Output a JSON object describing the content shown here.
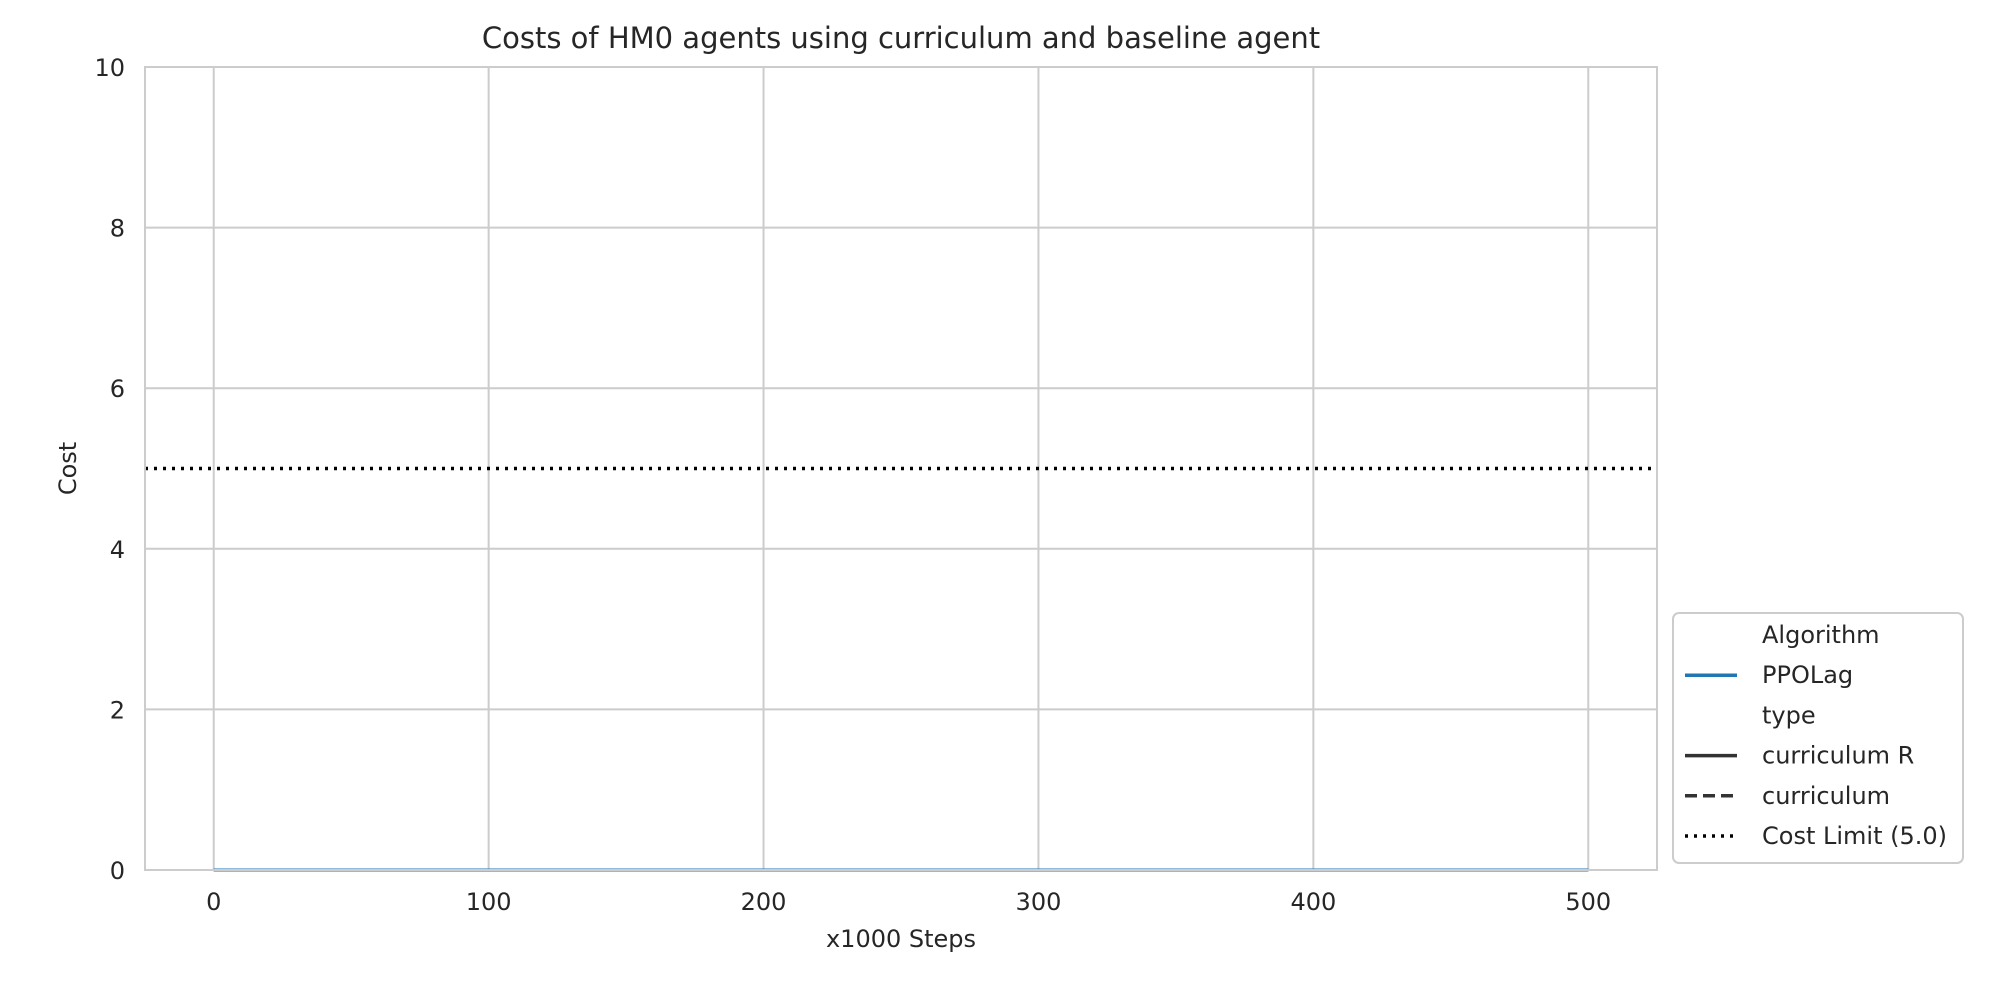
{
  "chart_data": {
    "type": "line",
    "title": "Costs of HM0 agents using curriculum and baseline agent",
    "xlabel": "x1000 Steps",
    "ylabel": "Cost",
    "xlim": [
      -25,
      525
    ],
    "ylim": [
      0,
      10
    ],
    "x_ticks": [
      0,
      100,
      200,
      300,
      400,
      500
    ],
    "y_ticks": [
      0,
      2,
      4,
      6,
      8,
      10
    ],
    "grid": true,
    "colors": {
      "ppolag": "#1f77b4",
      "dark": "#333333",
      "grid": "#cccccc",
      "cost_limit": "#000000"
    },
    "series": [
      {
        "name": "PPOLag",
        "type": "curriculum R",
        "x": [
          0,
          50,
          100,
          150,
          200,
          250,
          300,
          350,
          400,
          450,
          500
        ],
        "y": [
          0,
          0,
          0,
          0,
          0,
          0,
          0,
          0,
          0,
          0,
          0
        ]
      },
      {
        "name": "PPOLag",
        "type": "curriculum",
        "x": [
          0,
          50,
          100,
          150,
          200,
          250,
          300,
          350,
          400,
          450,
          500
        ],
        "y": [
          0,
          0,
          0,
          0,
          0,
          0,
          0,
          0,
          0,
          0,
          0
        ]
      }
    ],
    "cost_limit": {
      "label": "Cost Limit (5.0)",
      "value": 5.0
    },
    "legend": {
      "position": "lower-right-outside",
      "items": [
        {
          "label": "Algorithm",
          "style": "header",
          "color": "none"
        },
        {
          "label": "PPOLag",
          "style": "solid",
          "color": "#1f77b4"
        },
        {
          "label": "type",
          "style": "header",
          "color": "none"
        },
        {
          "label": "curriculum R",
          "style": "solid",
          "color": "#333333"
        },
        {
          "label": "curriculum",
          "style": "dashed",
          "color": "#333333"
        },
        {
          "label": "Cost Limit (5.0)",
          "style": "dotted",
          "color": "#000000"
        }
      ]
    }
  }
}
